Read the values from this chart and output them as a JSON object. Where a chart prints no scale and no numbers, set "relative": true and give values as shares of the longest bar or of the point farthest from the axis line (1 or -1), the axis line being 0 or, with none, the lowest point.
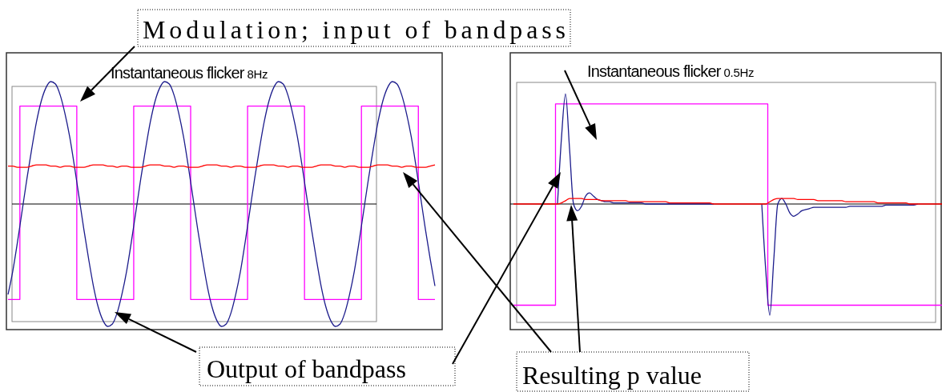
{
  "chart_data": [
    {
      "type": "line",
      "title": "Instantaneous flicker 8Hz",
      "relative": true,
      "categories": [
        null,
        null,
        null,
        null,
        null,
        null,
        null,
        null,
        null,
        null,
        null,
        null,
        null,
        null,
        null,
        null,
        null,
        null,
        null,
        null,
        null,
        null,
        null,
        null,
        null,
        null,
        null,
        null,
        null,
        null,
        null,
        null,
        null,
        null,
        null,
        null,
        null,
        null,
        null,
        null,
        null,
        null,
        null,
        null,
        null,
        null,
        null,
        null,
        null,
        null,
        null,
        null,
        null,
        null,
        null,
        null,
        null,
        null,
        null,
        null,
        null,
        null,
        null,
        null,
        null,
        null,
        null,
        null,
        null,
        null,
        null,
        null,
        null,
        null,
        null,
        null,
        null,
        null,
        null,
        null,
        null,
        null,
        null,
        null,
        null,
        null,
        null,
        null,
        null,
        null,
        null
      ],
      "series": [
        {
          "type": "step",
          "color": "#ff00ff",
          "values": [
            -0.78,
            -0.78,
            -0.78,
            0.8,
            0.8,
            0.8,
            0.8,
            0.8,
            0.8,
            0.8,
            0.8,
            0.8,
            0.8,
            0.8,
            0.8,
            -0.78,
            -0.78,
            -0.78,
            -0.78,
            -0.78,
            -0.78,
            -0.78,
            -0.78,
            -0.78,
            -0.78,
            -0.78,
            -0.78,
            0.8,
            0.8,
            0.8,
            0.8,
            0.8,
            0.8,
            0.8,
            0.8,
            0.8,
            0.8,
            0.8,
            0.8,
            -0.78,
            -0.78,
            -0.78,
            -0.78,
            -0.78,
            -0.78,
            -0.78,
            -0.78,
            -0.78,
            -0.78,
            -0.78,
            -0.78,
            0.8,
            0.8,
            0.8,
            0.8,
            0.8,
            0.8,
            0.8,
            0.8,
            0.8,
            0.8,
            0.8,
            0.8,
            -0.78,
            -0.78,
            -0.78,
            -0.78,
            -0.78,
            -0.78,
            -0.78,
            -0.78,
            -0.78,
            -0.78,
            -0.78,
            -0.78,
            0.8,
            0.8,
            0.8,
            0.8,
            0.8,
            0.8,
            0.8,
            0.8,
            0.8,
            0.8,
            0.8,
            0.8,
            -0.78,
            -0.78,
            -0.78,
            -0.78
          ]
        },
        {
          "type": "line",
          "color": "#1c1c8c",
          "values": [
            -0.74,
            -0.55,
            -0.31,
            -0.05,
            0.21,
            0.45,
            0.67,
            0.84,
            0.95,
            1,
            0.98,
            0.89,
            0.74,
            0.55,
            0.31,
            0.05,
            -0.21,
            -0.45,
            -0.67,
            -0.84,
            -0.95,
            -1,
            -0.98,
            -0.89,
            -0.74,
            -0.55,
            -0.31,
            -0.05,
            0.21,
            0.45,
            0.67,
            0.84,
            0.95,
            1,
            0.98,
            0.89,
            0.74,
            0.55,
            0.31,
            0.05,
            -0.21,
            -0.45,
            -0.67,
            -0.84,
            -0.95,
            -1,
            -0.98,
            -0.89,
            -0.74,
            -0.55,
            -0.31,
            -0.05,
            0.21,
            0.45,
            0.67,
            0.84,
            0.95,
            1,
            0.98,
            0.89,
            0.74,
            0.55,
            0.31,
            0.05,
            -0.21,
            -0.45,
            -0.67,
            -0.84,
            -0.95,
            -1,
            -0.98,
            -0.89,
            -0.74,
            -0.55,
            -0.31,
            -0.05,
            0.21,
            0.45,
            0.67,
            0.84,
            0.95,
            1,
            0.98,
            0.89,
            0.74,
            0.55,
            0.31,
            0.05,
            -0.21,
            -0.45,
            -0.67
          ]
        },
        {
          "type": "line",
          "color": "#ff0000",
          "values": [
            0.31,
            0.31,
            0.3,
            0.3,
            0.3,
            0.31,
            0.32,
            0.32,
            0.32,
            0.31,
            0.31,
            0.3,
            0.31,
            0.31,
            0.3,
            0.3,
            0.3,
            0.31,
            0.32,
            0.32,
            0.32,
            0.31,
            0.31,
            0.3,
            0.31,
            0.31,
            0.3,
            0.3,
            0.3,
            0.31,
            0.32,
            0.32,
            0.32,
            0.31,
            0.31,
            0.3,
            0.31,
            0.31,
            0.3,
            0.3,
            0.3,
            0.31,
            0.32,
            0.32,
            0.32,
            0.31,
            0.31,
            0.3,
            0.31,
            0.31,
            0.3,
            0.3,
            0.3,
            0.31,
            0.32,
            0.32,
            0.32,
            0.31,
            0.31,
            0.3,
            0.31,
            0.31,
            0.3,
            0.3,
            0.3,
            0.31,
            0.32,
            0.32,
            0.32,
            0.31,
            0.31,
            0.3,
            0.31,
            0.31,
            0.3,
            0.3,
            0.3,
            0.31,
            0.32,
            0.32,
            0.32,
            0.31,
            0.31,
            0.3,
            0.31,
            0.31,
            0.3,
            0.3,
            0.3,
            0.31,
            0.32
          ]
        }
      ],
      "annotations": [
        "Modulation; input of bandpass",
        "Output of bandpass"
      ]
    },
    {
      "type": "line",
      "title": "Instantaneous flicker 0.5Hz",
      "relative": true,
      "categories": [
        null,
        null,
        null,
        null,
        null,
        null,
        null,
        null,
        null,
        null,
        null,
        null,
        null,
        null,
        null,
        null,
        null,
        null,
        null,
        null,
        null,
        null,
        null,
        null,
        null,
        null,
        null,
        null,
        null,
        null,
        null,
        null,
        null,
        null,
        null,
        null,
        null,
        null,
        null,
        null,
        null,
        null,
        null,
        null,
        null,
        null,
        null,
        null,
        null,
        null,
        null,
        null,
        null,
        null,
        null,
        null,
        null,
        null,
        null,
        null,
        null,
        null,
        null,
        null,
        null,
        null,
        null,
        null,
        null,
        null,
        null,
        null,
        null,
        null,
        null,
        null,
        null,
        null,
        null,
        null,
        null,
        null,
        null,
        null,
        null,
        null,
        null,
        null,
        null,
        null,
        null,
        null,
        null,
        null,
        null,
        null,
        null,
        null,
        null,
        null,
        null,
        null,
        null,
        null,
        null,
        null,
        null,
        null
      ],
      "series": [
        {
          "type": "step",
          "color": "#ff00ff",
          "values": [
            -0.91,
            -0.91,
            -0.91,
            -0.91,
            -0.91,
            -0.91,
            -0.91,
            -0.91,
            -0.91,
            -0.91,
            -0.91,
            0.9,
            0.9,
            0.9,
            0.9,
            0.9,
            0.9,
            0.9,
            0.9,
            0.9,
            0.9,
            0.9,
            0.9,
            0.9,
            0.9,
            0.9,
            0.9,
            0.9,
            0.9,
            0.9,
            0.9,
            0.9,
            0.9,
            0.9,
            0.9,
            0.9,
            0.9,
            0.9,
            0.9,
            0.9,
            0.9,
            0.9,
            0.9,
            0.9,
            0.9,
            0.9,
            0.9,
            0.9,
            0.9,
            0.9,
            0.9,
            0.9,
            0.9,
            0.9,
            0.9,
            0.9,
            0.9,
            0.9,
            0.9,
            0.9,
            0.9,
            0.9,
            0.9,
            0.9,
            -0.91,
            -0.91,
            -0.91,
            -0.91,
            -0.91,
            -0.91,
            -0.91,
            -0.91,
            -0.91,
            -0.91,
            -0.91,
            -0.91,
            -0.91,
            -0.91,
            -0.91,
            -0.91,
            -0.91,
            -0.91,
            -0.91,
            -0.91,
            -0.91,
            -0.91,
            -0.91,
            -0.91,
            -0.91,
            -0.91,
            -0.91,
            -0.91,
            -0.91,
            -0.91,
            -0.91,
            -0.91,
            -0.91,
            -0.91,
            -0.91,
            -0.91,
            -0.91,
            -0.91,
            -0.91,
            -0.91,
            -0.91,
            -0.91,
            -0.91,
            -0.91
          ]
        },
        {
          "type": "line",
          "color": "#1c1c8c",
          "values": [
            null,
            null,
            null,
            null,
            null,
            null,
            null,
            null,
            null,
            null,
            null,
            0,
            0.6,
            0.99,
            0.5,
            0,
            -0.06,
            -0.02,
            0.07,
            0.1,
            0.07,
            0.04,
            0.03,
            0.02,
            0.02,
            0.01,
            0.01,
            0.01,
            0.01,
            0.01,
            0.01,
            0.01,
            0.01,
            0,
            0,
            0,
            0,
            0,
            0,
            0,
            0,
            0,
            0,
            0,
            0,
            0,
            0,
            0,
            0,
            0,
            0,
            null,
            null,
            null,
            null,
            null,
            null,
            null,
            null,
            null,
            null,
            null,
            0,
            -0.6,
            -1,
            -0.5,
            0,
            0.05,
            0,
            -0.08,
            -0.11,
            -0.09,
            -0.06,
            -0.05,
            -0.04,
            -0.03,
            -0.03,
            -0.03,
            -0.03,
            -0.03,
            -0.03,
            -0.03,
            -0.03,
            -0.03,
            -0.02,
            -0.02,
            -0.02,
            -0.02,
            -0.02,
            -0.02,
            -0.02,
            -0.02,
            -0.02,
            -0.01,
            -0.01,
            -0.01,
            -0.01,
            -0.01,
            -0.01,
            -0.01,
            -0.01,
            0,
            null,
            null,
            null,
            null,
            null,
            null
          ]
        },
        {
          "type": "line",
          "color": "#ff0000",
          "values": [
            0,
            0,
            0,
            0,
            0,
            0,
            0,
            0,
            0,
            0,
            0,
            0,
            0.01,
            0.03,
            0.05,
            0.05,
            0.05,
            0.05,
            0.04,
            0.04,
            0.04,
            0.04,
            0.03,
            0.03,
            0.03,
            0.03,
            0.03,
            0.03,
            0.03,
            0.02,
            0.02,
            0.02,
            0.02,
            0.02,
            0.02,
            0.02,
            0.02,
            0.02,
            0.02,
            0.01,
            0.01,
            0.01,
            0.01,
            0.01,
            0.01,
            0.01,
            0.01,
            0.01,
            0.01,
            0.01,
            0,
            0,
            0,
            0,
            0,
            0,
            0,
            0,
            0,
            0,
            0,
            0,
            0,
            0,
            0.02,
            0.04,
            0.05,
            0.05,
            0.05,
            0.05,
            0.05,
            0.04,
            0.04,
            0.04,
            0.04,
            0.04,
            0.03,
            0.03,
            0.03,
            0.03,
            0.03,
            0.03,
            0.03,
            0.02,
            0.02,
            0.02,
            0.02,
            0.02,
            0.02,
            0.02,
            0.02,
            0.01,
            0.01,
            0.01,
            0.01,
            0.01,
            0.01,
            0.01,
            0.01,
            0,
            0,
            0,
            0,
            0,
            0,
            0,
            0,
            0
          ]
        }
      ],
      "annotations": [
        "Resulting p value"
      ]
    }
  ]
}
